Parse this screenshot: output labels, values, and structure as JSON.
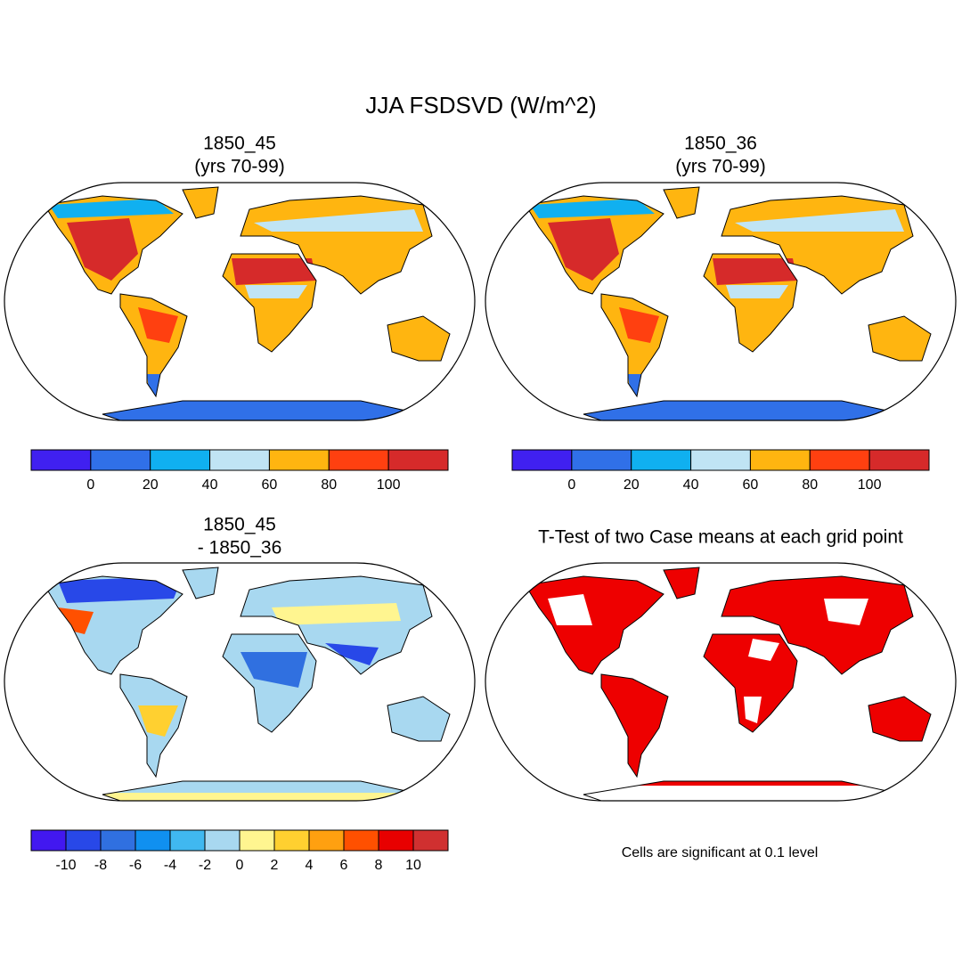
{
  "title": "JJA FSDSVD (W/m^2)",
  "panels": [
    {
      "title": [
        "1850_45",
        "(yrs 70-99)"
      ]
    },
    {
      "title": [
        "1850_36",
        "(yrs 70-99)"
      ]
    },
    {
      "title": [
        "1850_45",
        "- 1850_36"
      ]
    },
    {
      "title": [
        "T-Test of two Case means at each grid point"
      ]
    }
  ],
  "colorbars": [
    {
      "colors": [
        "#4020f0",
        "#3070e8",
        "#10b0f0",
        "#c0e4f4",
        "#ffb510",
        "#ff4010",
        "#d62a2a"
      ],
      "labels": [
        0,
        20,
        40,
        60,
        80,
        100
      ]
    },
    {
      "colors": [
        "#4020f0",
        "#3070e8",
        "#10b0f0",
        "#c0e4f4",
        "#ffb510",
        "#ff4010",
        "#d62a2a"
      ],
      "labels": [
        0,
        20,
        40,
        60,
        80,
        100
      ]
    },
    {
      "colors": [
        "#4218f0",
        "#2848e8",
        "#3070e0",
        "#1090f0",
        "#40b8f0",
        "#a8d8f0",
        "#fff590",
        "#ffd030",
        "#ffa010",
        "#ff5000",
        "#e80000",
        "#d03030"
      ],
      "labels": [
        -10,
        -8,
        -6,
        -4,
        -2,
        0,
        2,
        4,
        6,
        8,
        10
      ]
    }
  ],
  "note": "Cells are significant at 0.1 level"
}
